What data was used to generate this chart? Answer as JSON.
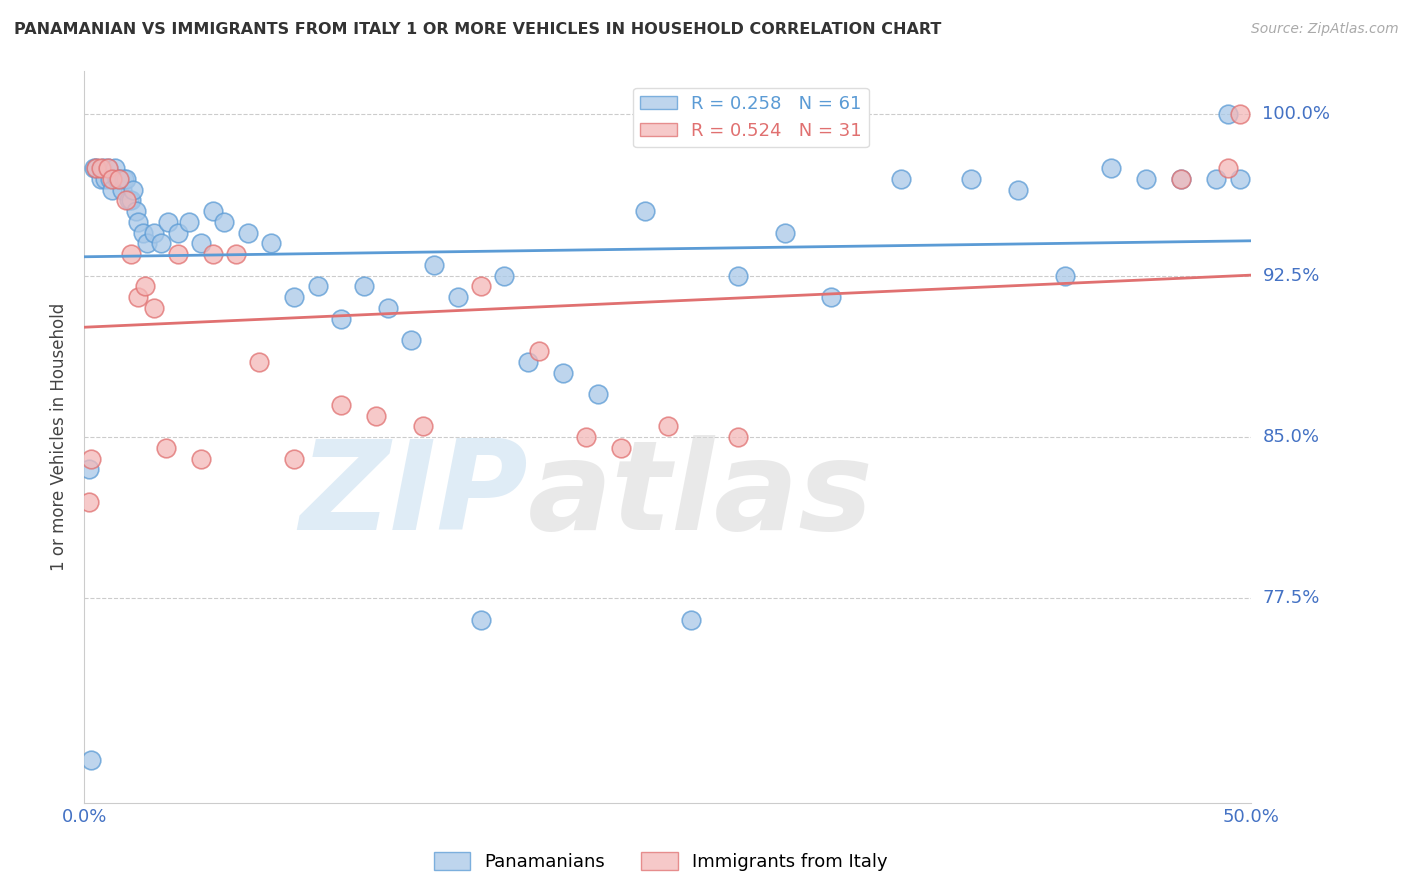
{
  "title": "PANAMANIAN VS IMMIGRANTS FROM ITALY 1 OR MORE VEHICLES IN HOUSEHOLD CORRELATION CHART",
  "source": "Source: ZipAtlas.com",
  "ylabel": "1 or more Vehicles in Household",
  "xlim": [
    0.0,
    50.0
  ],
  "ylim": [
    68.0,
    102.0
  ],
  "yticks": [
    77.5,
    85.0,
    92.5,
    100.0
  ],
  "ytick_labels": [
    "77.5%",
    "85.0%",
    "92.5%",
    "100.0%"
  ],
  "xticks": [
    0.0,
    10.0,
    20.0,
    30.0,
    40.0,
    50.0
  ],
  "watermark_zip": "ZIP",
  "watermark_atlas": "atlas",
  "blue_R": 0.258,
  "blue_N": 61,
  "pink_R": 0.524,
  "pink_N": 31,
  "blue_fill": "#a8c8e8",
  "blue_edge": "#5b9bd5",
  "pink_fill": "#f4b8b8",
  "pink_edge": "#e07070",
  "blue_line": "#5b9bd5",
  "pink_line": "#e07070",
  "legend_blue_label": "Panamanians",
  "legend_pink_label": "Immigrants from Italy",
  "blue_x": [
    0.3,
    0.4,
    0.5,
    0.7,
    0.8,
    0.9,
    1.0,
    1.1,
    1.2,
    1.3,
    1.4,
    1.5,
    1.6,
    1.7,
    1.8,
    1.9,
    2.0,
    2.1,
    2.2,
    2.3,
    2.5,
    2.7,
    3.0,
    3.3,
    3.6,
    4.0,
    4.5,
    5.0,
    5.5,
    6.0,
    7.0,
    8.0,
    9.0,
    10.0,
    11.0,
    12.0,
    13.0,
    14.0,
    15.0,
    16.0,
    17.0,
    18.0,
    19.0,
    20.5,
    22.0,
    24.0,
    26.0,
    28.0,
    30.0,
    32.0,
    35.0,
    38.0,
    40.0,
    42.0,
    44.0,
    45.5,
    47.0,
    48.5,
    49.0,
    49.5,
    0.2
  ],
  "blue_y": [
    70.0,
    97.5,
    97.5,
    97.0,
    97.5,
    97.0,
    97.5,
    97.0,
    96.5,
    97.5,
    97.0,
    97.0,
    96.5,
    97.0,
    97.0,
    96.0,
    96.0,
    96.5,
    95.5,
    95.0,
    94.5,
    94.0,
    94.5,
    94.0,
    95.0,
    94.5,
    95.0,
    94.0,
    95.5,
    95.0,
    94.5,
    94.0,
    91.5,
    92.0,
    90.5,
    92.0,
    91.0,
    89.5,
    93.0,
    91.5,
    76.5,
    92.5,
    88.5,
    88.0,
    87.0,
    95.5,
    76.5,
    92.5,
    94.5,
    91.5,
    97.0,
    97.0,
    96.5,
    92.5,
    97.5,
    97.0,
    97.0,
    97.0,
    100.0,
    97.0,
    83.5
  ],
  "pink_x": [
    0.2,
    0.3,
    0.5,
    0.7,
    1.0,
    1.2,
    1.5,
    1.8,
    2.0,
    2.3,
    2.6,
    3.0,
    3.5,
    4.0,
    5.0,
    5.5,
    6.5,
    7.5,
    9.0,
    11.0,
    12.5,
    14.5,
    17.0,
    19.5,
    21.5,
    23.0,
    25.0,
    28.0,
    47.0,
    49.0,
    49.5
  ],
  "pink_y": [
    82.0,
    84.0,
    97.5,
    97.5,
    97.5,
    97.0,
    97.0,
    96.0,
    93.5,
    91.5,
    92.0,
    91.0,
    84.5,
    93.5,
    84.0,
    93.5,
    93.5,
    88.5,
    84.0,
    86.5,
    86.0,
    85.5,
    92.0,
    89.0,
    85.0,
    84.5,
    85.5,
    85.0,
    97.0,
    97.5,
    100.0
  ]
}
